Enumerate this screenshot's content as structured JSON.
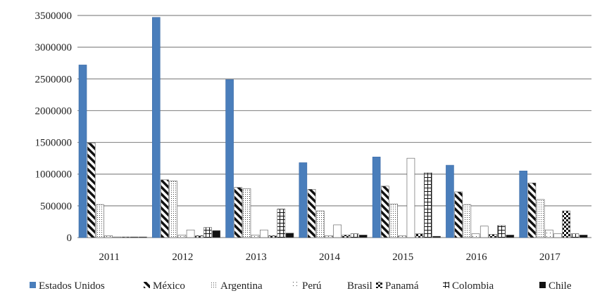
{
  "chart_data": {
    "type": "bar",
    "title": "",
    "xlabel": "",
    "ylabel": "",
    "categories": [
      "2011",
      "2012",
      "2013",
      "2014",
      "2015",
      "2016",
      "2017"
    ],
    "ylim": [
      0,
      3500000
    ],
    "yticks": [
      "0",
      "500000",
      "1000000",
      "1500000",
      "2000000",
      "2500000",
      "3000000",
      "3500000"
    ],
    "grid": "horizontal",
    "legend_position": "bottom",
    "series": [
      {
        "name": "Estados Unidos",
        "pattern": "solid-blue",
        "values": [
          2720000,
          3470000,
          2490000,
          1180000,
          1270000,
          1140000,
          1050000
        ]
      },
      {
        "name": "México",
        "pattern": "diagonal-stripes",
        "values": [
          1490000,
          910000,
          790000,
          760000,
          810000,
          720000,
          860000
        ]
      },
      {
        "name": "Argentina",
        "pattern": "dots",
        "values": [
          520000,
          890000,
          770000,
          420000,
          530000,
          520000,
          600000
        ]
      },
      {
        "name": "Perú",
        "pattern": "sparse-dots",
        "values": [
          30000,
          40000,
          40000,
          30000,
          30000,
          60000,
          120000
        ]
      },
      {
        "name": "Brasil",
        "pattern": "white",
        "values": [
          10000,
          120000,
          120000,
          200000,
          1250000,
          180000,
          60000
        ]
      },
      {
        "name": "Panamá",
        "pattern": "checker",
        "values": [
          10000,
          30000,
          30000,
          40000,
          60000,
          50000,
          420000
        ]
      },
      {
        "name": "Colombia",
        "pattern": "plus-grid",
        "values": [
          10000,
          160000,
          450000,
          60000,
          1020000,
          190000,
          60000
        ]
      },
      {
        "name": "Chile",
        "pattern": "dark",
        "values": [
          10000,
          110000,
          70000,
          40000,
          20000,
          40000,
          40000
        ]
      }
    ]
  },
  "colors": {
    "estados_unidos": "#4a7ebb",
    "grid": "#8c8c8c",
    "bar_outline": "#555555",
    "dark": "#111111"
  }
}
